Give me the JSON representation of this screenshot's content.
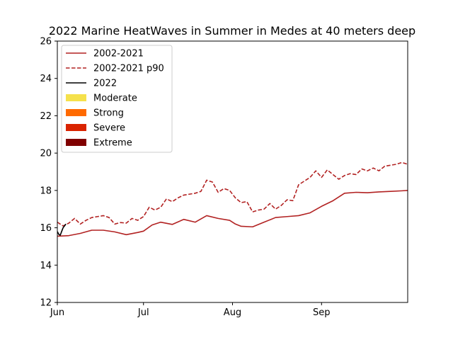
{
  "chart_data": {
    "type": "line",
    "title": "2022 Marine HeatWaves in Summer in Medes at 40 meters deep",
    "xlabel": "",
    "ylabel": "",
    "x_axis": {
      "range_days": [
        0,
        122
      ],
      "ticks": [
        {
          "label": "Jun",
          "day": 0
        },
        {
          "label": "Jul",
          "day": 30
        },
        {
          "label": "Aug",
          "day": 61
        },
        {
          "label": "Sep",
          "day": 92
        }
      ]
    },
    "ylim": [
      12,
      26
    ],
    "yticks": [
      12,
      14,
      16,
      18,
      20,
      22,
      24,
      26
    ],
    "grid": false,
    "legend_position": "top-left",
    "legend": [
      {
        "label": "2002-2021",
        "kind": "line",
        "style": "solid",
        "color": "#b22222"
      },
      {
        "label": "2002-2021 p90",
        "kind": "line",
        "style": "dashed",
        "color": "#b22222"
      },
      {
        "label": "2022",
        "kind": "line",
        "style": "solid",
        "color": "#000000"
      },
      {
        "label": "Moderate",
        "kind": "patch",
        "color": "#f5e14c"
      },
      {
        "label": "Strong",
        "kind": "patch",
        "color": "#ff6a00"
      },
      {
        "label": "Severe",
        "kind": "patch",
        "color": "#d92300"
      },
      {
        "label": "Extreme",
        "kind": "patch",
        "color": "#800000"
      }
    ],
    "series": [
      {
        "name": "2002-2021",
        "style": "solid",
        "color": "#b22222",
        "x": [
          0,
          4,
          8,
          12,
          16,
          20,
          24,
          28,
          30,
          33,
          36,
          40,
          44,
          48,
          52,
          56,
          60,
          62,
          64,
          68,
          72,
          76,
          80,
          84,
          88,
          92,
          96,
          100,
          104,
          108,
          112,
          116,
          120,
          122
        ],
        "y": [
          15.55,
          15.58,
          15.7,
          15.87,
          15.87,
          15.78,
          15.63,
          15.75,
          15.82,
          16.15,
          16.3,
          16.18,
          16.45,
          16.3,
          16.65,
          16.5,
          16.4,
          16.2,
          16.08,
          16.05,
          16.3,
          16.55,
          16.6,
          16.65,
          16.8,
          17.15,
          17.45,
          17.85,
          17.9,
          17.88,
          17.92,
          17.95,
          17.98,
          18.0
        ]
      },
      {
        "name": "2002-2021 p90",
        "style": "dashed",
        "color": "#b22222",
        "x": [
          0,
          2,
          4,
          6,
          8,
          10,
          12,
          14,
          16,
          18,
          20,
          22,
          24,
          26,
          28,
          30,
          32,
          34,
          36,
          38,
          40,
          42,
          44,
          46,
          48,
          50,
          52,
          54,
          56,
          58,
          60,
          62,
          64,
          66,
          68,
          70,
          72,
          74,
          76,
          78,
          80,
          82,
          84,
          86,
          88,
          90,
          92,
          94,
          96,
          98,
          100,
          102,
          104,
          106,
          108,
          110,
          112,
          114,
          116,
          118,
          120,
          122
        ],
        "y": [
          16.3,
          16.1,
          16.25,
          16.5,
          16.2,
          16.4,
          16.55,
          16.6,
          16.65,
          16.55,
          16.2,
          16.28,
          16.25,
          16.5,
          16.4,
          16.6,
          17.1,
          16.95,
          17.1,
          17.55,
          17.4,
          17.6,
          17.75,
          17.8,
          17.85,
          17.95,
          18.55,
          18.45,
          17.9,
          18.1,
          18.0,
          17.6,
          17.35,
          17.4,
          16.85,
          16.95,
          17.0,
          17.3,
          17.0,
          17.2,
          17.5,
          17.45,
          18.3,
          18.5,
          18.7,
          19.05,
          18.7,
          19.1,
          18.85,
          18.6,
          18.8,
          18.9,
          18.85,
          19.15,
          19.05,
          19.2,
          19.05,
          19.3,
          19.35,
          19.4,
          19.5,
          19.4
        ]
      },
      {
        "name": "2022",
        "style": "solid",
        "color": "#000000",
        "x": [
          0,
          0.5,
          1,
          1.5,
          2,
          2.5,
          3
        ],
        "y": [
          15.8,
          15.65,
          15.6,
          15.8,
          16.0,
          16.1,
          16.2
        ]
      }
    ]
  }
}
